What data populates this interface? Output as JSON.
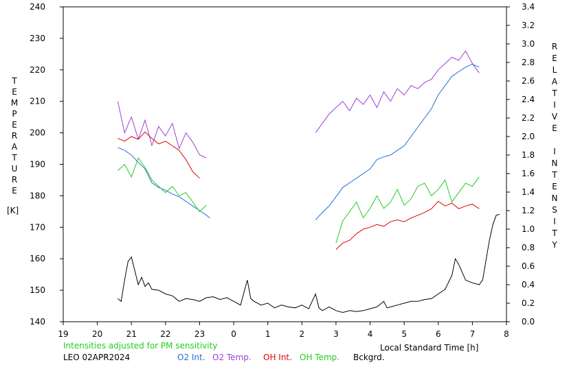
{
  "chart_data": {
    "type": "line",
    "left_axis_label": "TEMPERATURE",
    "left_axis_unit": "[K]",
    "right_axis_label": "RELATIVE INTENSITY",
    "x_axis_label": "Local Standard Time [h]",
    "x_ticks": [
      "19",
      "20",
      "21",
      "22",
      "23",
      "0",
      "1",
      "2",
      "3",
      "4",
      "5",
      "6",
      "7",
      "8"
    ],
    "xlim": [
      19,
      32
    ],
    "left_ylim": [
      140,
      240
    ],
    "left_ticks": [
      140,
      150,
      160,
      170,
      180,
      190,
      200,
      210,
      220,
      230,
      240
    ],
    "right_ylim": [
      0.0,
      3.4
    ],
    "right_ticks": [
      "0.0",
      "0.2",
      "0.4",
      "0.6",
      "0.8",
      "1.0",
      "1.2",
      "1.4",
      "1.6",
      "1.8",
      "2.0",
      "2.2",
      "2.4",
      "2.6",
      "2.8",
      "3.0",
      "3.2",
      "3.4"
    ],
    "note": "Intensities adjusted for PM sensitivity",
    "station": "LEO 02APR2024",
    "series": [
      {
        "name": "O2 Int.",
        "color": "#1f6fd6",
        "axis": "right",
        "segments": [
          [
            [
              20.6,
              1.88
            ],
            [
              20.8,
              1.85
            ],
            [
              21.0,
              1.8
            ],
            [
              21.2,
              1.72
            ],
            [
              21.4,
              1.65
            ],
            [
              21.6,
              1.5
            ],
            [
              21.8,
              1.45
            ],
            [
              22.0,
              1.42
            ],
            [
              22.2,
              1.38
            ],
            [
              22.4,
              1.35
            ],
            [
              22.6,
              1.3
            ],
            [
              22.8,
              1.25
            ],
            [
              23.0,
              1.2
            ],
            [
              23.2,
              1.15
            ],
            [
              23.3,
              1.12
            ]
          ],
          [
            [
              26.4,
              1.1
            ],
            [
              26.6,
              1.18
            ],
            [
              26.8,
              1.25
            ],
            [
              27.0,
              1.35
            ],
            [
              27.2,
              1.45
            ],
            [
              27.4,
              1.5
            ],
            [
              27.6,
              1.55
            ],
            [
              27.8,
              1.6
            ],
            [
              28.0,
              1.65
            ],
            [
              28.2,
              1.75
            ],
            [
              28.4,
              1.78
            ],
            [
              28.6,
              1.8
            ],
            [
              28.8,
              1.85
            ],
            [
              29.0,
              1.9
            ],
            [
              29.2,
              2.0
            ],
            [
              29.4,
              2.1
            ],
            [
              29.6,
              2.2
            ],
            [
              29.8,
              2.3
            ],
            [
              30.0,
              2.45
            ],
            [
              30.2,
              2.55
            ],
            [
              30.4,
              2.65
            ],
            [
              30.6,
              2.7
            ],
            [
              30.8,
              2.75
            ],
            [
              31.0,
              2.78
            ],
            [
              31.2,
              2.75
            ]
          ]
        ]
      },
      {
        "name": "O2 Temp.",
        "color": "#9b3fd6",
        "axis": "left",
        "segments": [
          [
            [
              20.6,
              210
            ],
            [
              20.8,
              200
            ],
            [
              21.0,
              205
            ],
            [
              21.2,
              198
            ],
            [
              21.4,
              204
            ],
            [
              21.6,
              196
            ],
            [
              21.8,
              202
            ],
            [
              22.0,
              199
            ],
            [
              22.2,
              203
            ],
            [
              22.4,
              195
            ],
            [
              22.6,
              200
            ],
            [
              22.8,
              197
            ],
            [
              23.0,
              193
            ],
            [
              23.2,
              192
            ]
          ],
          [
            [
              26.4,
              200
            ],
            [
              26.6,
              203
            ],
            [
              26.8,
              206
            ],
            [
              27.0,
              208
            ],
            [
              27.2,
              210
            ],
            [
              27.4,
              207
            ],
            [
              27.6,
              211
            ],
            [
              27.8,
              209
            ],
            [
              28.0,
              212
            ],
            [
              28.2,
              208
            ],
            [
              28.4,
              213
            ],
            [
              28.6,
              210
            ],
            [
              28.8,
              214
            ],
            [
              29.0,
              212
            ],
            [
              29.2,
              215
            ],
            [
              29.4,
              214
            ],
            [
              29.6,
              216
            ],
            [
              29.8,
              217
            ],
            [
              30.0,
              220
            ],
            [
              30.2,
              222
            ],
            [
              30.4,
              224
            ],
            [
              30.6,
              223
            ],
            [
              30.8,
              226
            ],
            [
              31.0,
              222
            ],
            [
              31.2,
              219
            ]
          ]
        ]
      },
      {
        "name": "OH Int.",
        "color": "#e00000",
        "axis": "right",
        "segments": [
          [
            [
              20.6,
              1.98
            ],
            [
              20.8,
              1.95
            ],
            [
              21.0,
              2.0
            ],
            [
              21.2,
              1.97
            ],
            [
              21.4,
              2.05
            ],
            [
              21.6,
              1.98
            ],
            [
              21.8,
              1.92
            ],
            [
              22.0,
              1.95
            ],
            [
              22.2,
              1.9
            ],
            [
              22.4,
              1.85
            ],
            [
              22.6,
              1.75
            ],
            [
              22.8,
              1.62
            ],
            [
              23.0,
              1.55
            ]
          ],
          [
            [
              27.0,
              0.78
            ],
            [
              27.2,
              0.85
            ],
            [
              27.4,
              0.88
            ],
            [
              27.6,
              0.95
            ],
            [
              27.8,
              1.0
            ],
            [
              28.0,
              1.02
            ],
            [
              28.2,
              1.05
            ],
            [
              28.4,
              1.03
            ],
            [
              28.6,
              1.08
            ],
            [
              28.8,
              1.1
            ],
            [
              29.0,
              1.08
            ],
            [
              29.2,
              1.12
            ],
            [
              29.4,
              1.15
            ],
            [
              29.6,
              1.18
            ],
            [
              29.8,
              1.22
            ],
            [
              30.0,
              1.3
            ],
            [
              30.2,
              1.25
            ],
            [
              30.4,
              1.28
            ],
            [
              30.6,
              1.22
            ],
            [
              30.8,
              1.25
            ],
            [
              31.0,
              1.27
            ],
            [
              31.2,
              1.22
            ]
          ]
        ]
      },
      {
        "name": "OH Temp.",
        "color": "#22cc22",
        "axis": "left",
        "segments": [
          [
            [
              20.6,
              188
            ],
            [
              20.8,
              190
            ],
            [
              21.0,
              186
            ],
            [
              21.2,
              192
            ],
            [
              21.4,
              189
            ],
            [
              21.6,
              185
            ],
            [
              21.8,
              183
            ],
            [
              22.0,
              181
            ],
            [
              22.2,
              183
            ],
            [
              22.4,
              180
            ],
            [
              22.6,
              181
            ],
            [
              22.8,
              178
            ],
            [
              23.0,
              175
            ],
            [
              23.2,
              177
            ]
          ],
          [
            [
              27.0,
              165
            ],
            [
              27.2,
              172
            ],
            [
              27.4,
              175
            ],
            [
              27.6,
              178
            ],
            [
              27.8,
              173
            ],
            [
              28.0,
              176
            ],
            [
              28.2,
              180
            ],
            [
              28.4,
              176
            ],
            [
              28.6,
              178
            ],
            [
              28.8,
              182
            ],
            [
              29.0,
              177
            ],
            [
              29.2,
              179
            ],
            [
              29.4,
              183
            ],
            [
              29.6,
              184
            ],
            [
              29.8,
              180
            ],
            [
              30.0,
              182
            ],
            [
              30.2,
              185
            ],
            [
              30.4,
              178
            ],
            [
              30.6,
              181
            ],
            [
              30.8,
              184
            ],
            [
              31.0,
              183
            ],
            [
              31.2,
              186
            ]
          ]
        ]
      },
      {
        "name": "Bckgrd.",
        "color": "#000000",
        "axis": "right",
        "segments": [
          [
            [
              20.6,
              0.25
            ],
            [
              20.7,
              0.22
            ],
            [
              20.8,
              0.45
            ],
            [
              20.9,
              0.65
            ],
            [
              21.0,
              0.7
            ],
            [
              21.1,
              0.55
            ],
            [
              21.2,
              0.4
            ],
            [
              21.3,
              0.48
            ],
            [
              21.4,
              0.38
            ],
            [
              21.5,
              0.42
            ],
            [
              21.6,
              0.35
            ],
            [
              21.8,
              0.34
            ],
            [
              22.0,
              0.3
            ],
            [
              22.2,
              0.28
            ],
            [
              22.4,
              0.22
            ],
            [
              22.6,
              0.25
            ],
            [
              22.8,
              0.24
            ],
            [
              23.0,
              0.22
            ],
            [
              23.2,
              0.26
            ],
            [
              23.4,
              0.27
            ],
            [
              23.6,
              0.24
            ],
            [
              23.8,
              0.26
            ],
            [
              24.0,
              0.22
            ],
            [
              24.2,
              0.18
            ],
            [
              24.4,
              0.45
            ],
            [
              24.5,
              0.25
            ],
            [
              24.6,
              0.22
            ],
            [
              24.8,
              0.18
            ],
            [
              25.0,
              0.2
            ],
            [
              25.2,
              0.15
            ],
            [
              25.4,
              0.18
            ],
            [
              25.6,
              0.16
            ],
            [
              25.8,
              0.15
            ],
            [
              26.0,
              0.18
            ],
            [
              26.2,
              0.14
            ],
            [
              26.4,
              0.3
            ],
            [
              26.5,
              0.15
            ],
            [
              26.6,
              0.12
            ],
            [
              26.8,
              0.16
            ],
            [
              27.0,
              0.12
            ],
            [
              27.2,
              0.1
            ],
            [
              27.4,
              0.12
            ],
            [
              27.6,
              0.11
            ],
            [
              27.8,
              0.12
            ],
            [
              28.0,
              0.14
            ],
            [
              28.2,
              0.16
            ],
            [
              28.4,
              0.22
            ],
            [
              28.5,
              0.15
            ],
            [
              28.6,
              0.16
            ],
            [
              28.8,
              0.18
            ],
            [
              29.0,
              0.2
            ],
            [
              29.2,
              0.22
            ],
            [
              29.4,
              0.22
            ],
            [
              29.6,
              0.24
            ],
            [
              29.8,
              0.25
            ],
            [
              30.0,
              0.3
            ],
            [
              30.2,
              0.35
            ],
            [
              30.4,
              0.5
            ],
            [
              30.5,
              0.68
            ],
            [
              30.6,
              0.62
            ],
            [
              30.8,
              0.45
            ],
            [
              31.0,
              0.42
            ],
            [
              31.2,
              0.4
            ],
            [
              31.3,
              0.45
            ],
            [
              31.5,
              0.88
            ],
            [
              31.6,
              1.05
            ],
            [
              31.7,
              1.15
            ],
            [
              31.8,
              1.16
            ]
          ]
        ]
      }
    ]
  }
}
